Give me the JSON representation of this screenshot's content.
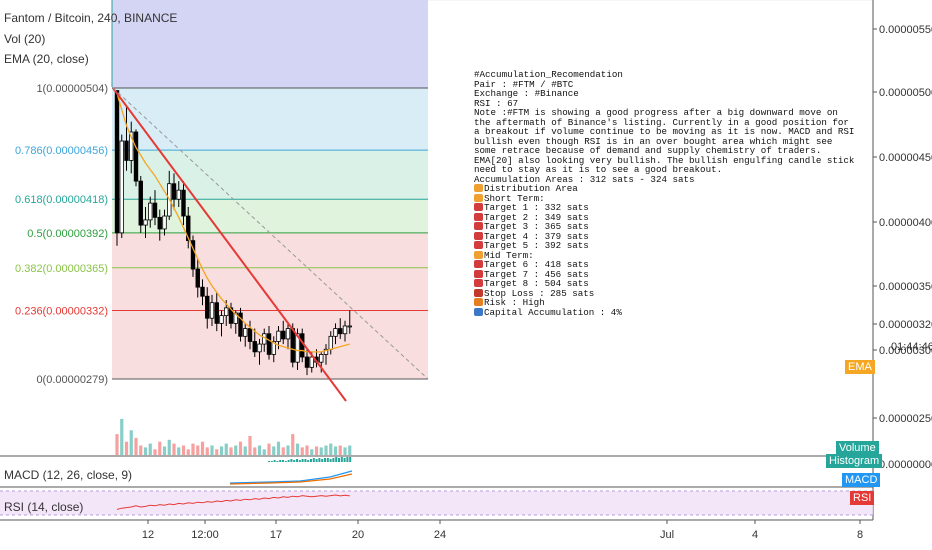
{
  "title": {
    "main": "Fantom / Bitcoin, 240, BINANCE",
    "vol": "Vol (20)",
    "ema": "EMA (20, close)"
  },
  "panels": {
    "macd_label": "MACD (12, 26, close, 9)",
    "rsi_label": "RSI (14, close)"
  },
  "badges": {
    "ema": "EMA",
    "volume": "Volume",
    "histogram": "Histogram",
    "macd": "MACD",
    "rsi": "RSI",
    "countdown": "01:44:46"
  },
  "colors": {
    "up": "#26a69a",
    "down": "#ef5350",
    "candle": "#000000",
    "ema": "#f5a623",
    "trendline": "#e53935",
    "projection": "#999999",
    "fib_top_zone": "#d4d4f4",
    "rsi_band": "#f1e0f7"
  },
  "fib_levels": [
    {
      "ratio": "1",
      "price": 5.04e-06,
      "label": "1(0.00000504)",
      "color": "#555555",
      "fill": "#e6e6e6"
    },
    {
      "ratio": "0.786",
      "price": 4.56e-06,
      "label": "0.786(0.00000456)",
      "color": "#3da5d9",
      "fill": "#d4ebf5"
    },
    {
      "ratio": "0.618",
      "price": 4.18e-06,
      "label": "0.618(0.00000418)",
      "color": "#26a69a",
      "fill": "#d6f0e6"
    },
    {
      "ratio": "0.5",
      "price": 3.92e-06,
      "label": "0.5(0.00000392)",
      "color": "#2e9e3e",
      "fill": "#dcf2d9"
    },
    {
      "ratio": "0.382",
      "price": 3.65e-06,
      "label": "0.382(0.00000365)",
      "color": "#8bc34a",
      "fill": "#f7dada"
    },
    {
      "ratio": "0.236",
      "price": 3.32e-06,
      "label": "0.236(0.00000332)",
      "color": "#e53935",
      "fill": "#f7dada"
    },
    {
      "ratio": "0",
      "price": 2.79e-06,
      "label": "0(0.00000279)",
      "color": "#555555",
      "fill": null
    }
  ],
  "chart_data": {
    "type": "candlestick",
    "symbol": "Fantom / Bitcoin",
    "interval": "240",
    "exchange": "BINANCE",
    "y_axis_ticks": [
      "0.00000550",
      "0.00000500",
      "0.00000450",
      "0.00000400",
      "0.00000350",
      "0.00000320",
      "0.00000300",
      "0.00000250",
      "0.00000000"
    ],
    "last_price": "0.00000320",
    "x_axis_ticks": [
      "12",
      "12:00",
      "17",
      "20",
      "24",
      "Jul",
      "4",
      "8"
    ],
    "ohlc": [
      [
        502,
        502,
        382,
        392
      ],
      [
        392,
        468,
        388,
        463
      ],
      [
        463,
        490,
        440,
        448
      ],
      [
        448,
        478,
        438,
        470
      ],
      [
        470,
        472,
        428,
        432
      ],
      [
        432,
        436,
        392,
        398
      ],
      [
        398,
        412,
        388,
        402
      ],
      [
        402,
        420,
        396,
        415
      ],
      [
        415,
        425,
        398,
        404
      ],
      [
        404,
        410,
        386,
        395
      ],
      [
        395,
        410,
        390,
        405
      ],
      [
        405,
        440,
        402,
        430
      ],
      [
        430,
        438,
        410,
        418
      ],
      [
        418,
        432,
        412,
        425
      ],
      [
        425,
        432,
        398,
        405
      ],
      [
        405,
        412,
        380,
        386
      ],
      [
        386,
        390,
        358,
        364
      ],
      [
        364,
        372,
        342,
        350
      ],
      [
        350,
        356,
        336,
        343
      ],
      [
        343,
        350,
        318,
        326
      ],
      [
        326,
        344,
        320,
        338
      ],
      [
        338,
        346,
        316,
        322
      ],
      [
        322,
        332,
        312,
        328
      ],
      [
        328,
        340,
        320,
        334
      ],
      [
        334,
        338,
        318,
        322
      ],
      [
        322,
        332,
        314,
        330
      ],
      [
        330,
        334,
        308,
        312
      ],
      [
        312,
        322,
        304,
        318
      ],
      [
        318,
        324,
        302,
        308
      ],
      [
        308,
        318,
        296,
        300
      ],
      [
        300,
        310,
        290,
        306
      ],
      [
        306,
        318,
        300,
        314
      ],
      [
        314,
        320,
        294,
        298
      ],
      [
        298,
        312,
        292,
        308
      ],
      [
        308,
        320,
        302,
        316
      ],
      [
        316,
        324,
        306,
        310
      ],
      [
        310,
        322,
        302,
        318
      ],
      [
        318,
        322,
        288,
        292
      ],
      [
        292,
        318,
        286,
        314
      ],
      [
        314,
        318,
        292,
        296
      ],
      [
        296,
        302,
        282,
        288
      ],
      [
        288,
        300,
        284,
        296
      ],
      [
        296,
        302,
        288,
        292
      ],
      [
        292,
        300,
        284,
        298
      ],
      [
        298,
        306,
        290,
        302
      ],
      [
        302,
        316,
        298,
        312
      ],
      [
        312,
        322,
        306,
        318
      ],
      [
        318,
        326,
        310,
        314
      ],
      [
        314,
        324,
        308,
        320
      ],
      [
        320,
        332,
        314,
        320
      ]
    ],
    "ema20": [
      500,
      487,
      475,
      466,
      458,
      452,
      446,
      441,
      436,
      430,
      424,
      418,
      411,
      404,
      396,
      388,
      380,
      372,
      364,
      357,
      351,
      346,
      341,
      337,
      333,
      329,
      326,
      322,
      319,
      316,
      313,
      311,
      309,
      307,
      305,
      304,
      303,
      302,
      301,
      301,
      300,
      300,
      300,
      300,
      301,
      302,
      303,
      304,
      305,
      306
    ],
    "volume": [
      22,
      38,
      14,
      26,
      18,
      10,
      8,
      12,
      6,
      14,
      9,
      16,
      12,
      8,
      10,
      6,
      12,
      10,
      14,
      8,
      10,
      6,
      9,
      12,
      8,
      10,
      14,
      9,
      20,
      8,
      10,
      6,
      12,
      9,
      14,
      8,
      10,
      22,
      12,
      8,
      10,
      6,
      9,
      8,
      10,
      12,
      9,
      10,
      8,
      10
    ],
    "rsi": [
      22,
      26,
      28,
      30,
      34,
      30,
      32,
      36,
      34,
      38,
      36,
      40,
      38,
      42,
      40,
      44,
      42,
      46,
      44,
      48,
      46,
      50,
      48,
      52,
      50,
      54,
      52,
      56,
      54,
      58,
      56,
      60,
      58,
      62,
      60,
      64,
      62,
      66,
      64,
      68,
      66,
      64,
      66,
      68,
      66,
      68,
      70,
      67,
      69,
      67
    ],
    "macd_hist": [
      1,
      1,
      2,
      1,
      2,
      2,
      1,
      2,
      3,
      2,
      3,
      2,
      3,
      3,
      2,
      3,
      4,
      3,
      4,
      3,
      4,
      4,
      3,
      4,
      5,
      4,
      5,
      4,
      5,
      5
    ],
    "trendline": {
      "from_price": 5.04e-06,
      "to_price": 2.62e-06
    },
    "projection": {
      "from_price": 5.04e-06,
      "to_price": 2.79e-06
    }
  },
  "note": [
    {
      "icon": null,
      "text": "#Accumulation_Recomendation"
    },
    {
      "icon": null,
      "text": "Pair : #FTM / #BTC"
    },
    {
      "icon": null,
      "text": "Exchange : #Binance"
    },
    {
      "icon": null,
      "text": "RSI : 67"
    },
    {
      "icon": null,
      "text": "Note :#FTM is showing a good progress after a big downward move on the aftermath of Binance's listing. Currently in a good position for a breakout if volume continue to be moving as it is now. MACD and RSI bullish even though RSI is in an over bought area which might see some retrace because of demand and supply chemistry of traders. EMA[20] also looking very bullish. The bullish engulfing candle stick need to stay as it is to see a good breakout."
    },
    {
      "icon": null,
      "text": "Accumulation Areas : 312 sats - 324 sats"
    },
    {
      "icon": "hand-icon",
      "text": "Distribution Area"
    },
    {
      "icon": "hand-icon",
      "text": "Short Term:"
    },
    {
      "icon": "pin-icon",
      "text": "Target 1 : 332 sats"
    },
    {
      "icon": "pin-icon",
      "text": "Target 2 : 349 sats"
    },
    {
      "icon": "pin-icon",
      "text": "Target 3 : 365 sats"
    },
    {
      "icon": "pin-icon",
      "text": "Target 4 : 379 sats"
    },
    {
      "icon": "pin-icon",
      "text": "Target 5 : 392 sats"
    },
    {
      "icon": "hand-icon",
      "text": "Mid Term:"
    },
    {
      "icon": "pin-icon",
      "text": "Target 6 : 418 sats"
    },
    {
      "icon": "pin-icon",
      "text": "Target 7 : 456 sats"
    },
    {
      "icon": "pin-icon",
      "text": "Target 8 : 504 sats"
    },
    {
      "icon": "stop-icon",
      "text": "Stop Loss : 285 sats"
    },
    {
      "icon": "warning-icon",
      "text": "Risk : High"
    },
    {
      "icon": "chart-icon",
      "text": "Capital Accumulation : 4%"
    }
  ]
}
